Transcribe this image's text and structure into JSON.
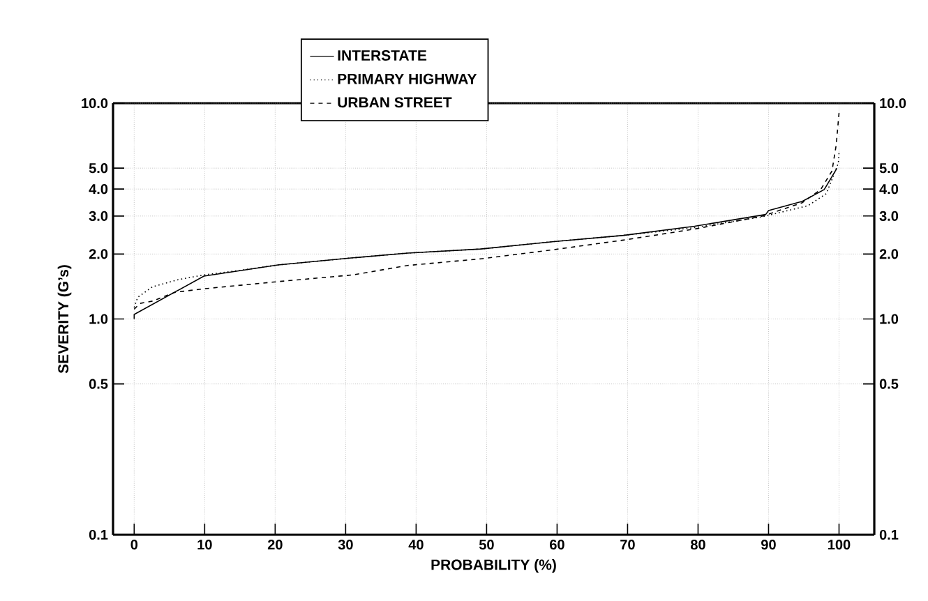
{
  "chart_data": {
    "type": "line",
    "xlabel": "PROBABILITY (%)",
    "ylabel": "SEVERITY (G’s)",
    "xlim": [
      -3,
      105
    ],
    "ylim": [
      0.1,
      10
    ],
    "log": "y",
    "grid": true,
    "legend": "top",
    "xticks": [
      0,
      10,
      20,
      30,
      40,
      50,
      60,
      70,
      80,
      90,
      100
    ],
    "yticks": [
      {
        "value": 0.1,
        "label": "0.1"
      },
      {
        "value": 0.5,
        "label": "0.5"
      },
      {
        "value": 1,
        "label": "1.0"
      },
      {
        "value": 2,
        "label": "2.0"
      },
      {
        "value": 3,
        "label": "3.0"
      },
      {
        "value": 4,
        "label": "4.0"
      },
      {
        "value": 5,
        "label": "5.0"
      },
      {
        "value": 10,
        "label": "10.0"
      }
    ],
    "series": [
      {
        "name": "INTERSTATE",
        "color": "#000000",
        "line_style": "solid",
        "x": [
          0,
          0,
          9.9,
          20.4,
          31,
          38.8,
          49.2,
          59.3,
          69.4,
          79.5,
          89.6,
          90,
          94.8,
          97.9,
          99.7
        ],
        "values": [
          1.0,
          1.05,
          1.58,
          1.78,
          1.92,
          2.02,
          2.11,
          2.28,
          2.44,
          2.69,
          3.05,
          3.18,
          3.51,
          3.98,
          4.99
        ]
      },
      {
        "name": "PRIMARY HIGHWAY",
        "color": "#000000",
        "line_style": "dotted",
        "x": [
          0,
          0.5,
          2.6,
          6.2,
          9.9,
          15,
          20.4,
          31,
          38.8,
          49.2,
          59.3,
          69.4,
          79.5,
          89.2,
          95.6,
          98.2,
          99.9,
          100
        ],
        "values": [
          1.13,
          1.26,
          1.41,
          1.52,
          1.6,
          1.68,
          1.78,
          1.92,
          2.02,
          2.11,
          2.28,
          2.44,
          2.65,
          2.98,
          3.35,
          3.81,
          5.27,
          5.9
        ]
      },
      {
        "name": "URBAN STREET",
        "color": "#000000",
        "line_style": "dashed",
        "x": [
          0,
          0.8,
          2.6,
          5.8,
          9.9,
          20.4,
          31,
          38.8,
          49.2,
          59.3,
          69.4,
          79.5,
          89.2,
          94.8,
          97.4,
          99,
          99.6,
          100
        ],
        "values": [
          1.11,
          1.18,
          1.21,
          1.33,
          1.38,
          1.49,
          1.6,
          1.77,
          1.9,
          2.09,
          2.32,
          2.61,
          3.0,
          3.46,
          3.98,
          4.85,
          6.4,
          9.0
        ]
      }
    ]
  }
}
